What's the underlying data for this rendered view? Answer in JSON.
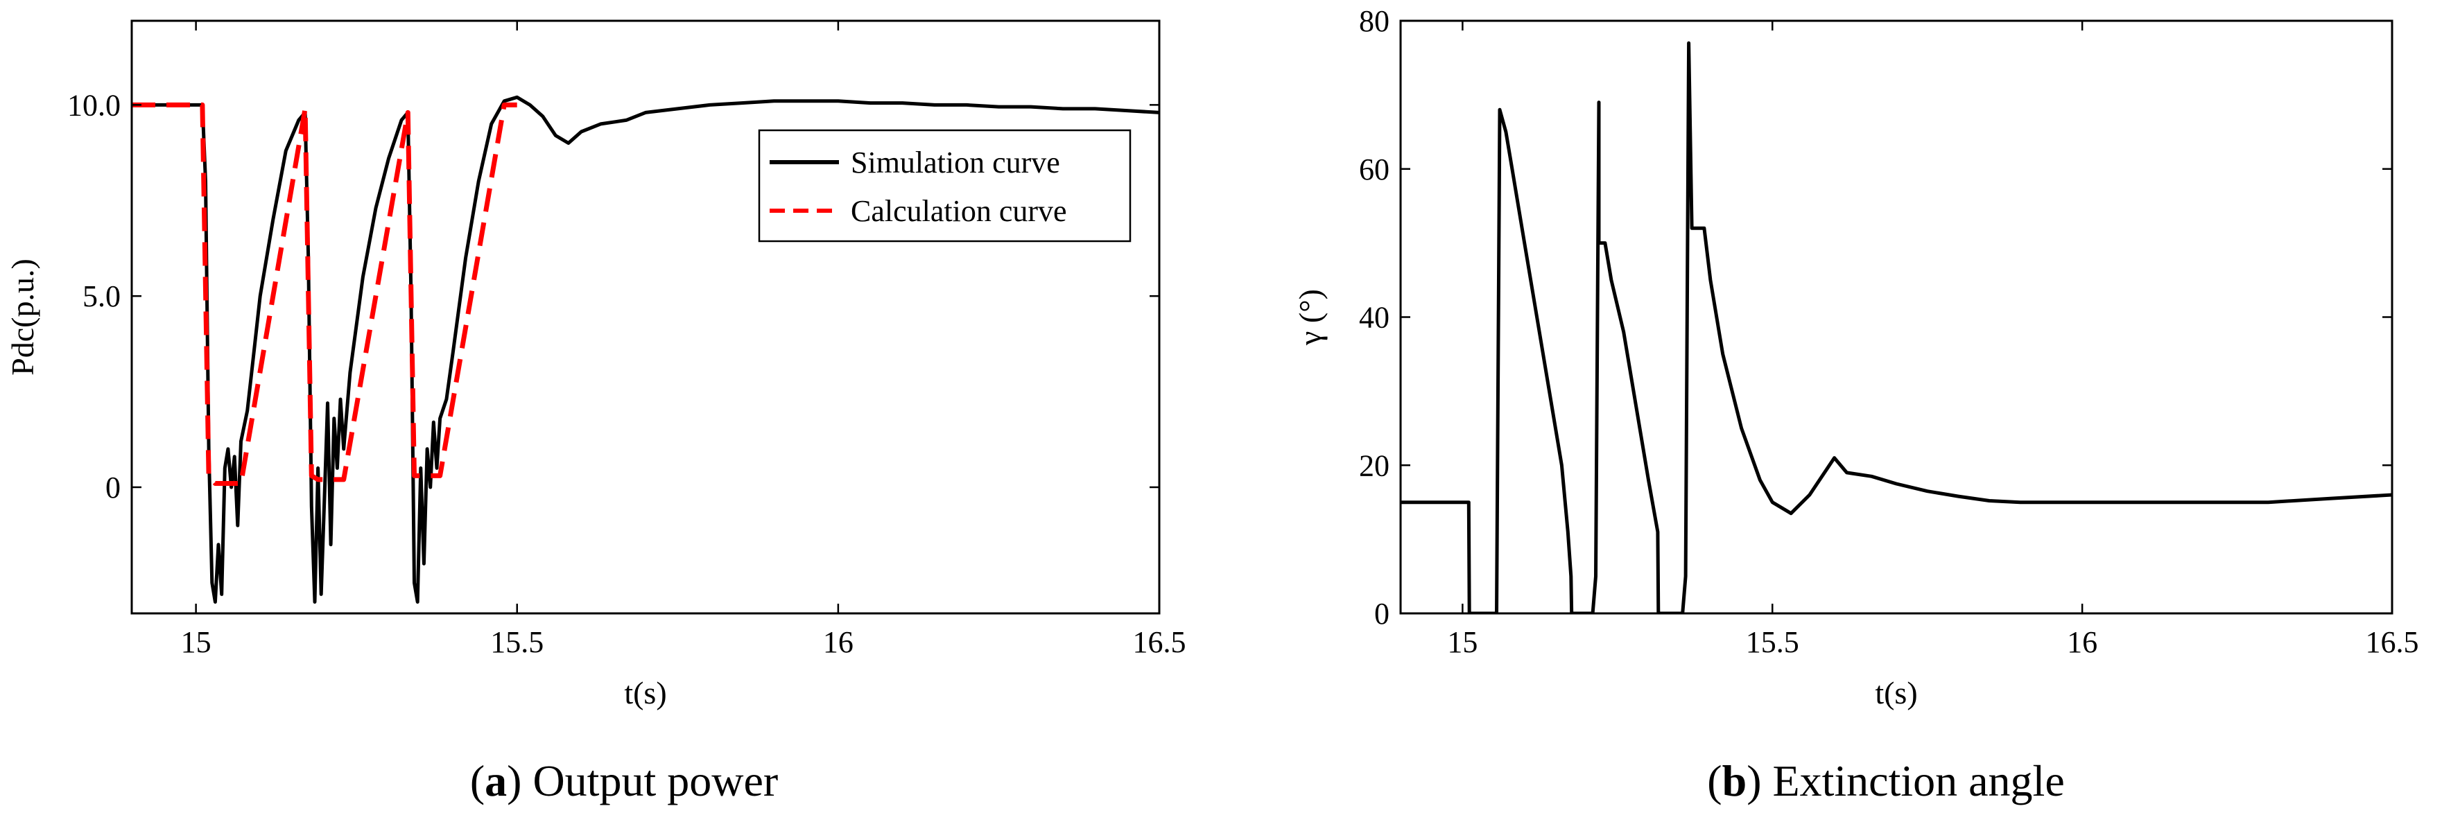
{
  "chart_data": [
    {
      "type": "line",
      "caption": {
        "letter": "a",
        "text": "Output power"
      },
      "xlabel": "t(s)",
      "ylabel": "Pdc(p.u.)",
      "xlim": [
        14.9,
        16.5
      ],
      "ylim": [
        -3.3,
        12.2
      ],
      "xticks": [
        15,
        15.5,
        16,
        16.5
      ],
      "xtick_labels": [
        "15",
        "15.5",
        "16",
        "16.5"
      ],
      "yticks": [
        0,
        5,
        10
      ],
      "ytick_labels": [
        "0",
        "5.0",
        "10.0"
      ],
      "grid": false,
      "legend_position": "top-right",
      "series": [
        {
          "name": "Simulation curve",
          "color": "#000000",
          "dash": "solid",
          "x": [
            14.9,
            15.01,
            15.015,
            15.02,
            15.025,
            15.03,
            15.035,
            15.04,
            15.045,
            15.05,
            15.055,
            15.06,
            15.065,
            15.07,
            15.08,
            15.09,
            15.1,
            15.12,
            15.14,
            15.16,
            15.17,
            15.175,
            15.18,
            15.185,
            15.19,
            15.195,
            15.2,
            15.205,
            15.21,
            15.215,
            15.22,
            15.225,
            15.23,
            15.24,
            15.26,
            15.28,
            15.3,
            15.32,
            15.33,
            15.335,
            15.34,
            15.345,
            15.35,
            15.355,
            15.36,
            15.365,
            15.37,
            15.375,
            15.38,
            15.39,
            15.4,
            15.42,
            15.44,
            15.46,
            15.48,
            15.5,
            15.52,
            15.54,
            15.56,
            15.58,
            15.6,
            15.63,
            15.67,
            15.7,
            15.75,
            15.8,
            15.85,
            15.9,
            15.95,
            16.0,
            16.05,
            16.1,
            16.15,
            16.2,
            16.25,
            16.3,
            16.35,
            16.4,
            16.45,
            16.5
          ],
          "y": [
            10.0,
            10.0,
            8.0,
            1.0,
            -2.5,
            -3.0,
            -1.5,
            -2.8,
            0.5,
            1.0,
            0.0,
            0.8,
            -1.0,
            1.2,
            2.0,
            3.5,
            5.0,
            7.0,
            8.8,
            9.6,
            9.8,
            6.0,
            -0.5,
            -3.0,
            0.5,
            -2.8,
            -0.3,
            2.2,
            -1.5,
            1.8,
            0.5,
            2.3,
            1.0,
            3.0,
            5.5,
            7.3,
            8.6,
            9.6,
            9.8,
            5.0,
            -2.5,
            -3.0,
            0.5,
            -2.0,
            1.0,
            0.0,
            1.7,
            0.5,
            1.8,
            2.3,
            3.5,
            6.0,
            8.0,
            9.5,
            10.1,
            10.2,
            10.0,
            9.7,
            9.2,
            9.0,
            9.3,
            9.5,
            9.6,
            9.8,
            9.9,
            10.0,
            10.05,
            10.1,
            10.1,
            10.1,
            10.05,
            10.05,
            10.0,
            10.0,
            9.95,
            9.95,
            9.9,
            9.9,
            9.85,
            9.8
          ]
        },
        {
          "name": "Calculation curve",
          "color": "#ff0000",
          "dash": "dashed",
          "x": [
            14.9,
            15.01,
            15.02,
            15.03,
            15.07,
            15.17,
            15.18,
            15.19,
            15.23,
            15.33,
            15.34,
            15.35,
            15.38,
            15.48,
            15.5
          ],
          "y": [
            10.0,
            10.0,
            0.3,
            0.1,
            0.1,
            9.9,
            0.3,
            0.2,
            0.2,
            9.8,
            0.3,
            0.3,
            0.3,
            10.0,
            10.0
          ]
        }
      ]
    },
    {
      "type": "line",
      "caption": {
        "letter": "b",
        "text": "Extinction angle"
      },
      "xlabel": "t(s)",
      "ylabel": "γ (°)",
      "xlim": [
        14.9,
        16.5
      ],
      "ylim": [
        0,
        80
      ],
      "xticks": [
        15,
        15.5,
        16,
        16.5
      ],
      "xtick_labels": [
        "15",
        "15.5",
        "16",
        "16.5"
      ],
      "yticks": [
        0,
        20,
        40,
        60,
        80
      ],
      "ytick_labels": [
        "0",
        "20",
        "40",
        "60",
        "80"
      ],
      "grid": false,
      "series": [
        {
          "color": "#000000",
          "dash": "solid",
          "x": [
            14.9,
            15.01,
            15.011,
            15.055,
            15.06,
            15.07,
            15.08,
            15.1,
            15.12,
            15.14,
            15.16,
            15.17,
            15.175,
            15.176,
            15.21,
            15.215,
            15.22,
            15.22,
            15.23,
            15.24,
            15.26,
            15.28,
            15.3,
            15.315,
            15.316,
            15.355,
            15.36,
            15.365,
            15.37,
            15.375,
            15.38,
            15.39,
            15.4,
            15.42,
            15.45,
            15.48,
            15.5,
            15.53,
            15.56,
            15.6,
            15.62,
            15.66,
            15.7,
            15.75,
            15.8,
            15.85,
            15.9,
            15.95,
            16.0,
            16.1,
            16.2,
            16.3,
            16.4,
            16.5
          ],
          "y": [
            15,
            15,
            0,
            0,
            68,
            65,
            60,
            50,
            40,
            30,
            20,
            11,
            5,
            0,
            0,
            5,
            69,
            50,
            50,
            45,
            38,
            28,
            18,
            11,
            0,
            0,
            5,
            77,
            52,
            52,
            52,
            52,
            45,
            35,
            25,
            18,
            15,
            13.5,
            16,
            21,
            19,
            18.5,
            17.5,
            16.5,
            15.8,
            15.2,
            15,
            15,
            15,
            15,
            15,
            15,
            15.5,
            16
          ]
        }
      ]
    }
  ]
}
